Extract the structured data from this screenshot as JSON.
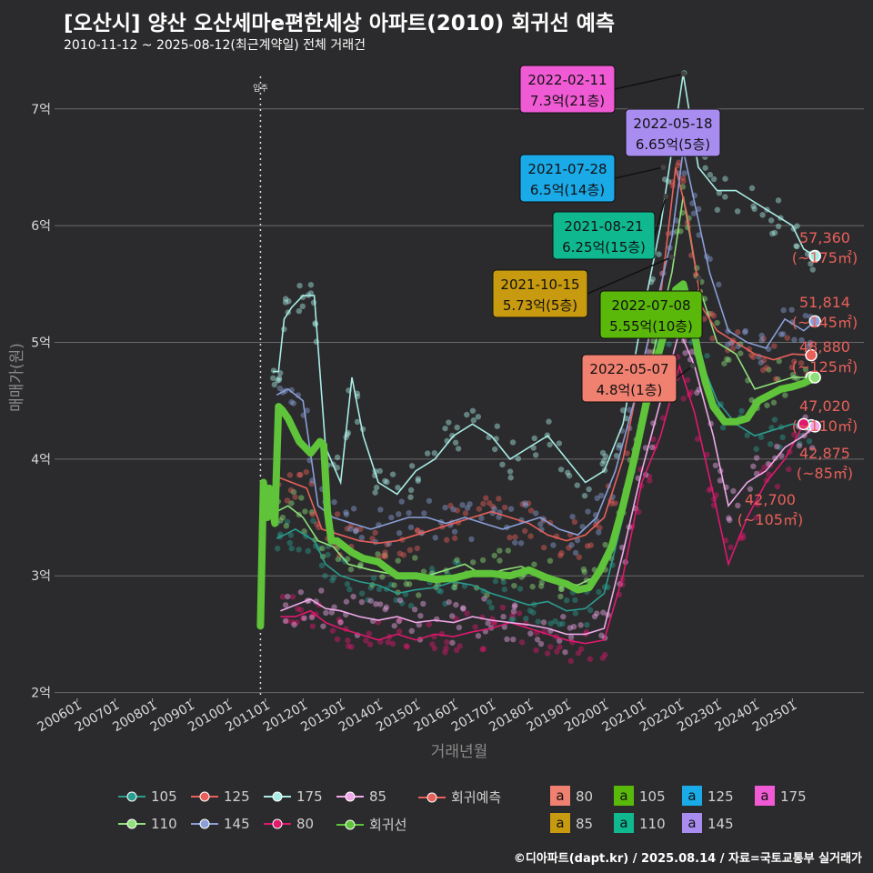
{
  "title": "[오산시] 양산 오산세마e편한세상 아파트(2010) 회귀선 예측",
  "subtitle": "2010-11-12 ~ 2025-08-12(최근계약일) 전체 거래건",
  "credit": "©디아파트(dapt.kr) / 2025.08.14 / 자료=국토교통부 실거래가",
  "chart_data": {
    "type": "line",
    "xlabel": "거래년월",
    "ylabel": "매매가(원)",
    "x_ticks": [
      "200601",
      "200701",
      "200801",
      "200901",
      "201001",
      "201101",
      "201201",
      "201301",
      "201401",
      "201501",
      "201601",
      "201701",
      "201801",
      "201901",
      "202001",
      "202101",
      "202201",
      "202301",
      "202401",
      "202501"
    ],
    "y_ticks": [
      "2억",
      "3억",
      "4억",
      "5억",
      "6억",
      "7억"
    ],
    "ylim": [
      1.95,
      7.45
    ],
    "xlim": [
      2005.4,
      2026.9
    ],
    "move_in_label": "입주",
    "move_in_x": 2010.87,
    "regression": {
      "name": "회귀선",
      "color": "#5fc43a",
      "x": [
        2010.87,
        2010.95,
        2011.05,
        2011.1,
        2011.25,
        2011.35,
        2011.45,
        2011.6,
        2011.9,
        2012.2,
        2012.45,
        2012.55,
        2012.65,
        2012.75,
        2012.9,
        2013.3,
        2013.6,
        2014.0,
        2014.5,
        2015.0,
        2015.5,
        2016.0,
        2016.5,
        2017.0,
        2017.5,
        2018.0,
        2018.5,
        2019.0,
        2019.3,
        2019.6,
        2019.9,
        2020.2,
        2020.5,
        2020.8,
        2021.1,
        2021.4,
        2021.7,
        2021.9,
        2022.1,
        2022.3,
        2022.5,
        2022.7,
        2022.9,
        2023.2,
        2023.5,
        2023.8,
        2024.1,
        2024.4,
        2024.7,
        2025.0,
        2025.3,
        2025.6
      ],
      "y": [
        2.57,
        3.8,
        3.5,
        3.75,
        3.45,
        4.45,
        4.42,
        4.35,
        4.15,
        4.05,
        4.15,
        4.12,
        3.55,
        3.3,
        3.3,
        3.2,
        3.15,
        3.12,
        3.0,
        3.0,
        2.97,
        2.98,
        3.02,
        3.02,
        3.0,
        3.05,
        2.98,
        2.93,
        2.88,
        2.9,
        3.05,
        3.25,
        3.6,
        4.0,
        4.45,
        4.85,
        5.2,
        5.45,
        5.5,
        5.25,
        4.9,
        4.65,
        4.45,
        4.32,
        4.32,
        4.35,
        4.5,
        4.55,
        4.6,
        4.62,
        4.65,
        4.7
      ]
    },
    "series": [
      {
        "name": "105",
        "color": "#2a9d8f",
        "x": [
          2011.3,
          2011.5,
          2011.8,
          2012.3,
          2012.6,
          2013.0,
          2013.5,
          2014.0,
          2014.5,
          2015.0,
          2015.5,
          2016.0,
          2016.5,
          2017.0,
          2017.5,
          2018.0,
          2018.5,
          2019.0,
          2019.5,
          2020.0,
          2020.5,
          2021.0,
          2021.5,
          2022.0,
          2022.5,
          2023.0,
          2023.5,
          2024.0,
          2024.5,
          2025.0,
          2025.5
        ],
        "y": [
          3.32,
          3.35,
          3.4,
          3.3,
          3.1,
          3.0,
          2.95,
          2.92,
          2.85,
          2.88,
          2.9,
          2.95,
          2.92,
          2.85,
          2.8,
          2.75,
          2.78,
          2.7,
          2.72,
          2.85,
          3.5,
          4.3,
          5.0,
          5.3,
          4.9,
          4.5,
          4.3,
          4.2,
          4.25,
          4.3,
          4.29
        ]
      },
      {
        "name": "110",
        "color": "#8fe07a",
        "x": [
          2011.3,
          2011.6,
          2012.0,
          2012.4,
          2012.8,
          2013.2,
          2013.8,
          2014.3,
          2014.8,
          2015.3,
          2015.8,
          2016.3,
          2016.8,
          2017.3,
          2017.8,
          2018.3,
          2018.8,
          2019.3,
          2019.8,
          2020.3,
          2020.8,
          2021.3,
          2021.8,
          2022.1,
          2022.5,
          2023.0,
          2023.5,
          2024.0,
          2024.5,
          2025.0,
          2025.5
        ],
        "y": [
          3.55,
          3.6,
          3.5,
          3.3,
          3.25,
          3.1,
          3.05,
          3.02,
          2.98,
          3.0,
          3.05,
          3.1,
          3.0,
          3.05,
          3.08,
          3.0,
          2.95,
          2.92,
          3.0,
          3.3,
          4.1,
          4.9,
          5.6,
          6.25,
          5.5,
          5.0,
          4.9,
          4.6,
          4.65,
          4.7,
          4.7
        ]
      },
      {
        "name": "125",
        "color": "#e8605a",
        "x": [
          2011.3,
          2011.7,
          2012.1,
          2012.5,
          2013.0,
          2013.5,
          2014.0,
          2014.5,
          2015.0,
          2015.5,
          2016.0,
          2016.5,
          2017.0,
          2017.5,
          2018.0,
          2018.5,
          2019.0,
          2019.5,
          2020.0,
          2020.5,
          2021.0,
          2021.5,
          2021.9,
          2022.2,
          2022.6,
          2023.0,
          2023.5,
          2024.0,
          2024.5,
          2025.0,
          2025.5
        ],
        "y": [
          3.85,
          3.8,
          3.75,
          3.4,
          3.35,
          3.3,
          3.28,
          3.3,
          3.35,
          3.4,
          3.45,
          3.5,
          3.55,
          3.5,
          3.45,
          3.35,
          3.3,
          3.35,
          3.5,
          4.0,
          4.8,
          5.4,
          6.5,
          6.1,
          5.3,
          5.1,
          5.0,
          4.9,
          4.85,
          4.9,
          4.89
        ]
      },
      {
        "name": "145",
        "color": "#8a9fd8",
        "x": [
          2011.3,
          2011.6,
          2012.0,
          2012.4,
          2012.8,
          2013.3,
          2013.8,
          2014.3,
          2014.8,
          2015.3,
          2015.8,
          2016.3,
          2016.8,
          2017.3,
          2017.8,
          2018.3,
          2018.8,
          2019.3,
          2019.8,
          2020.3,
          2020.8,
          2021.3,
          2021.8,
          2022.1,
          2022.4,
          2022.8,
          2023.3,
          2023.8,
          2024.3,
          2024.8,
          2025.3,
          2025.6
        ],
        "y": [
          4.55,
          4.6,
          4.5,
          3.6,
          3.5,
          3.45,
          3.4,
          3.45,
          3.5,
          3.5,
          3.45,
          3.5,
          3.45,
          3.4,
          3.45,
          3.5,
          3.4,
          3.35,
          3.5,
          3.9,
          4.5,
          5.2,
          5.9,
          6.65,
          6.2,
          5.6,
          5.1,
          5.0,
          4.95,
          5.2,
          5.1,
          5.18
        ]
      },
      {
        "name": "175",
        "color": "#a8ece4",
        "x": [
          2011.2,
          2011.35,
          2011.5,
          2011.7,
          2012.0,
          2012.3,
          2012.6,
          2013.0,
          2013.3,
          2013.6,
          2014.0,
          2014.5,
          2015.0,
          2015.5,
          2016.0,
          2016.5,
          2017.0,
          2017.5,
          2018.0,
          2018.5,
          2019.0,
          2019.5,
          2020.0,
          2020.5,
          2021.0,
          2021.5,
          2022.1,
          2022.5,
          2023.0,
          2023.5,
          2024.0,
          2024.5,
          2025.0,
          2025.3,
          2025.6
        ],
        "y": [
          4.75,
          4.75,
          5.2,
          5.3,
          5.4,
          5.4,
          4.1,
          3.8,
          4.7,
          4.2,
          3.8,
          3.7,
          3.9,
          4.0,
          4.2,
          4.3,
          4.2,
          4.0,
          4.1,
          4.2,
          4.0,
          3.8,
          3.9,
          4.3,
          5.2,
          6.0,
          7.3,
          6.5,
          6.3,
          6.3,
          6.2,
          6.1,
          6.0,
          5.8,
          5.74
        ]
      },
      {
        "name": "80",
        "color": "#e0186e",
        "x": [
          2011.4,
          2011.8,
          2012.2,
          2012.6,
          2013.0,
          2013.5,
          2014.0,
          2014.5,
          2015.0,
          2015.5,
          2016.0,
          2016.5,
          2017.0,
          2017.5,
          2018.0,
          2018.5,
          2019.0,
          2019.5,
          2020.0,
          2020.5,
          2021.0,
          2021.5,
          2022.0,
          2022.4,
          2022.9,
          2023.3,
          2023.8,
          2024.3,
          2024.8,
          2025.3
        ],
        "y": [
          2.65,
          2.65,
          2.7,
          2.6,
          2.55,
          2.5,
          2.45,
          2.5,
          2.45,
          2.5,
          2.48,
          2.52,
          2.55,
          2.6,
          2.55,
          2.5,
          2.45,
          2.42,
          2.45,
          3.0,
          3.8,
          4.2,
          4.8,
          4.4,
          3.7,
          3.1,
          3.5,
          3.8,
          4.0,
          4.3
        ]
      },
      {
        "name": "85",
        "color": "#f0a8e8",
        "x": [
          2011.4,
          2011.8,
          2012.2,
          2012.6,
          2013.0,
          2013.5,
          2014.0,
          2014.5,
          2015.0,
          2015.5,
          2016.0,
          2016.5,
          2017.0,
          2017.5,
          2018.0,
          2018.5,
          2019.0,
          2019.5,
          2020.0,
          2020.5,
          2021.0,
          2021.5,
          2022.0,
          2022.4,
          2022.9,
          2023.3,
          2023.8,
          2024.3,
          2024.8,
          2025.3,
          2025.6
        ],
        "y": [
          2.7,
          2.75,
          2.8,
          2.72,
          2.7,
          2.65,
          2.62,
          2.65,
          2.6,
          2.62,
          2.6,
          2.65,
          2.62,
          2.6,
          2.58,
          2.55,
          2.5,
          2.5,
          2.55,
          3.2,
          3.9,
          4.5,
          5.1,
          4.8,
          4.2,
          3.6,
          3.8,
          3.9,
          4.1,
          4.2,
          4.28
        ]
      }
    ],
    "callouts": [
      {
        "date": "2022-02-11",
        "price": "7.3억(21층)",
        "color": "#f05ad4",
        "x": 2022.11,
        "y": 7.3
      },
      {
        "date": "2022-05-18",
        "price": "6.65억(5층)",
        "color": "#a88cf0",
        "x": 2022.38,
        "y": 6.65
      },
      {
        "date": "2021-07-28",
        "price": "6.5억(14층)",
        "color": "#1aaae8",
        "x": 2021.57,
        "y": 6.5
      },
      {
        "date": "2021-08-21",
        "price": "6.25억(15층)",
        "color": "#10b890",
        "x": 2021.64,
        "y": 6.25
      },
      {
        "date": "2021-10-15",
        "price": "5.73억(5층)",
        "color": "#c89a10",
        "x": 2021.79,
        "y": 5.73
      },
      {
        "date": "2022-07-08",
        "price": "5.55억(10층)",
        "color": "#5ab80a",
        "x": 2022.52,
        "y": 5.55
      },
      {
        "date": "2022-05-07",
        "price": "4.8억(1층)",
        "color": "#f08070",
        "x": 2022.35,
        "y": 4.8
      }
    ],
    "end_labels": [
      {
        "value": "57,360",
        "area": "(~175㎡)",
        "color": "#e8605a",
        "y": 5.74
      },
      {
        "value": "51,814",
        "area": "(~145㎡)",
        "color": "#e8605a",
        "y": 5.18
      },
      {
        "value": "48,880",
        "area": "(~125㎡)",
        "color": "#e8605a",
        "y": 4.89
      },
      {
        "value": "47,020",
        "area": "(~110㎡)",
        "color": "#e8605a",
        "y": 4.7
      },
      {
        "value": "42,875",
        "area": "(~85㎡)",
        "color": "#e8605a",
        "y": 4.29
      },
      {
        "value": "42,700",
        "area": "(~105㎡)",
        "color": "#e8605a",
        "y": 3.9
      }
    ],
    "legend_lines": [
      {
        "label": "105",
        "color": "#2a9d8f"
      },
      {
        "label": "125",
        "color": "#e8605a"
      },
      {
        "label": "175",
        "color": "#a8ece4"
      },
      {
        "label": "85",
        "color": "#f0a8e8"
      },
      {
        "label": "회귀예측",
        "color": "#e8605a"
      },
      {
        "label": "110",
        "color": "#8fe07a"
      },
      {
        "label": "145",
        "color": "#8a9fd8"
      },
      {
        "label": "80",
        "color": "#e0186e"
      },
      {
        "label": "회귀선",
        "color": "#5fc43a"
      }
    ],
    "legend_fills": [
      {
        "glyph": "a",
        "label": "80",
        "color": "#f08070"
      },
      {
        "glyph": "a",
        "label": "105",
        "color": "#5ab80a"
      },
      {
        "glyph": "a",
        "label": "125",
        "color": "#1aaae8"
      },
      {
        "glyph": "a",
        "label": "175",
        "color": "#f05ad4"
      },
      {
        "glyph": "a",
        "label": "85",
        "color": "#c89a10"
      },
      {
        "glyph": "a",
        "label": "110",
        "color": "#10b890"
      },
      {
        "glyph": "a",
        "label": "145",
        "color": "#a88cf0"
      }
    ]
  }
}
